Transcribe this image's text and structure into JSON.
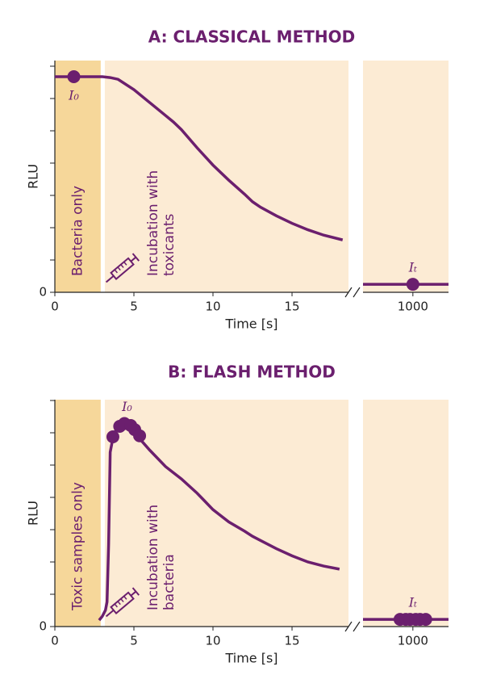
{
  "chart_data": [
    {
      "type": "line",
      "title": "A: CLASSICAL METHOD",
      "xlabel": "Time [s]",
      "ylabel": "RLU",
      "xlim": [
        0,
        18.57
      ],
      "xticks": [
        0,
        5,
        10,
        15
      ],
      "x2lim": [
        996.5,
        1002.5
      ],
      "x2ticks": [
        1000
      ],
      "ylim": [
        0,
        107.5
      ],
      "yticks": [
        0
      ],
      "color": "#6b1f6e",
      "regions": [
        {
          "label": [
            "Bacteria only"
          ],
          "xlim": [
            0,
            2.9
          ],
          "color": "#f6d79a"
        },
        {
          "label": [
            "Incubation with",
            "toxicants"
          ],
          "xlim": [
            3.16,
            18.57
          ],
          "color": "#fcebd4"
        }
      ],
      "x": [
        0,
        1,
        2,
        3,
        3.5,
        4,
        5,
        6,
        7,
        7.5,
        8,
        9,
        10,
        11,
        12,
        12.5,
        13,
        14,
        15,
        16,
        17,
        18.2
      ],
      "values": [
        100,
        100,
        100,
        100,
        99.6,
        98.8,
        94,
        88,
        82,
        79,
        75.5,
        67,
        59,
        52,
        45.5,
        42,
        39.5,
        35.5,
        32,
        29,
        26.5,
        24.3
      ],
      "markers": {
        "label": "I₀",
        "x": [
          1.2
        ],
        "values": [
          100
        ]
      },
      "break_x": [
        996.5,
        1002.5
      ],
      "break_values": [
        3.7,
        3.7
      ],
      "break_markers": {
        "label": "Iₜ",
        "x": [
          1000
        ],
        "values": [
          3.7
        ]
      }
    },
    {
      "type": "line",
      "title": "B: FLASH METHOD",
      "xlabel": "Time [s]",
      "ylabel": "RLU",
      "xlim": [
        0,
        18.57
      ],
      "xticks": [
        0,
        5,
        10,
        15
      ],
      "x2lim": [
        996.5,
        1002.5
      ],
      "x2ticks": [
        1000
      ],
      "ylim": [
        0,
        110.6
      ],
      "yticks": [
        0
      ],
      "color": "#6b1f6e",
      "regions": [
        {
          "label": [
            "Toxic samples only"
          ],
          "xlim": [
            0,
            2.9
          ],
          "color": "#f6d79a"
        },
        {
          "label": [
            "Incubation with",
            "bacteria"
          ],
          "xlim": [
            3.16,
            18.57
          ],
          "color": "#fcebd4"
        }
      ],
      "x": [
        2.8,
        3.0,
        3.2,
        3.3,
        3.4,
        3.5,
        3.7,
        4.0,
        4.3,
        4.7,
        5.2,
        6,
        7,
        7.5,
        8,
        9,
        10,
        11,
        12,
        12.5,
        13,
        14,
        15,
        16,
        17,
        18
      ],
      "values": [
        3.1,
        5,
        8,
        12,
        40,
        85,
        93,
        98,
        100,
        98,
        93,
        86,
        78,
        75,
        72,
        65,
        57,
        51,
        46.5,
        44,
        42,
        38,
        34.5,
        31.5,
        29.5,
        28
      ],
      "markers": {
        "label": "I₀",
        "x": [
          3.67,
          4.1,
          4.4,
          4.8,
          5.05,
          5.36
        ],
        "values": [
          92.5,
          97.6,
          99,
          98,
          96,
          93
        ]
      },
      "break_x": [
        996.5,
        1002.5
      ],
      "break_values": [
        3.5,
        3.5
      ],
      "break_markers": {
        "label": "Iₜ",
        "x": [
          999.1,
          999.5,
          999.8,
          1000.2,
          1000.5,
          1000.9
        ],
        "values": [
          3.5,
          3.5,
          3.5,
          3.5,
          3.5,
          3.5
        ]
      }
    }
  ]
}
